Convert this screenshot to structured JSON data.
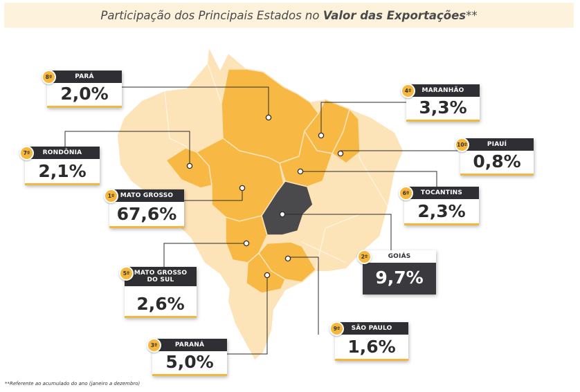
{
  "title": {
    "prefix": "Participação dos Principais Estados no ",
    "highlight": "Valor das Exportações",
    "suffix": "**"
  },
  "states": [
    {
      "id": "para",
      "rank": "8º",
      "name": "PARÁ",
      "value": "2,0%"
    },
    {
      "id": "rondonia",
      "rank": "7º",
      "name": "RONDÔNIA",
      "value": "2,1%"
    },
    {
      "id": "mato-grosso",
      "rank": "1º",
      "name": "MATO GROSSO",
      "value": "67,6%"
    },
    {
      "id": "mato-grosso-do-sul",
      "rank": "5º",
      "name": "MATO GROSSO DO SUL",
      "value": "2,6%"
    },
    {
      "id": "parana",
      "rank": "3º",
      "name": "PARANÁ",
      "value": "5,0%"
    },
    {
      "id": "maranhao",
      "rank": "4º",
      "name": "MARANHÃO",
      "value": "3,3%"
    },
    {
      "id": "piaui",
      "rank": "10º",
      "name": "PIAUÍ",
      "value": "0,8%"
    },
    {
      "id": "tocantins",
      "rank": "6º",
      "name": "TOCANTINS",
      "value": "2,3%"
    },
    {
      "id": "goias",
      "rank": "2º",
      "name": "GOIÁS",
      "value": "9,7%"
    },
    {
      "id": "sao-paulo",
      "rank": "9º",
      "name": "SÃO PAULO",
      "value": "1,6%"
    }
  ],
  "footnote": "**Referente ao acumulado do ano (janeiro a dezembro)",
  "colors": {
    "highlight": "#f7b844",
    "base": "#fde3b8",
    "dark": "#4a4a4c",
    "card_header": "#2f2f33"
  }
}
